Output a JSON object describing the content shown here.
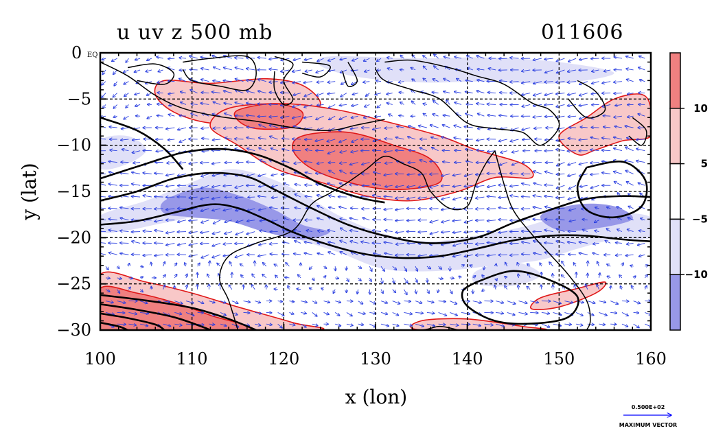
{
  "chart_data": {
    "type": "contour-map",
    "title_left": "u uv z 500 mb",
    "title_right": "011606",
    "xlabel": "x (lon)",
    "ylabel": "y (lat)",
    "xlim": [
      100,
      160
    ],
    "ylim": [
      -30,
      0
    ],
    "x_ticks": [
      "100",
      "110",
      "120",
      "130",
      "140",
      "150",
      "160"
    ],
    "y_ticks": [
      "0 EQ",
      "−5",
      "−10",
      "−15",
      "−20",
      "−25",
      "−30"
    ],
    "grid": true,
    "colorbar": {
      "placement": "right",
      "levels": [
        "10",
        "5",
        "−5",
        "−10"
      ],
      "colors": [
        "#f08080",
        "#f8c8c8",
        "#ffffff",
        "#e0e0f8",
        "#9898e8"
      ]
    },
    "vector_legend": {
      "magnitude": "0.500E+02",
      "label": "MAXIMUM VECTOR",
      "color": "#0000ff"
    },
    "red_regions": [
      {
        "level": 5,
        "points": [
          [
            107,
            -3
          ],
          [
            112,
            -3.3
          ],
          [
            118,
            -2.8
          ],
          [
            122,
            -3.5
          ],
          [
            124,
            -5.5
          ],
          [
            122,
            -6.8
          ],
          [
            117,
            -7.4
          ],
          [
            112,
            -7.6
          ],
          [
            108,
            -6.4
          ],
          [
            106,
            -4.5
          ]
        ]
      },
      {
        "level": 5,
        "points": [
          [
            114,
            -6
          ],
          [
            120,
            -5.5
          ],
          [
            126,
            -6.2
          ],
          [
            131,
            -7.4
          ],
          [
            137,
            -9
          ],
          [
            141,
            -10.5
          ],
          [
            146,
            -12
          ],
          [
            147,
            -13.5
          ],
          [
            143,
            -13.5
          ],
          [
            139,
            -15
          ],
          [
            134,
            -16
          ],
          [
            129,
            -15.5
          ],
          [
            124,
            -14
          ],
          [
            119,
            -12.5
          ],
          [
            115,
            -10
          ],
          [
            112,
            -8
          ]
        ]
      },
      {
        "level": 10,
        "points": [
          [
            115,
            -6.2
          ],
          [
            119,
            -5.5
          ],
          [
            122,
            -6.4
          ],
          [
            121,
            -8
          ],
          [
            117,
            -8.2
          ],
          [
            115,
            -7.3
          ]
        ]
      },
      {
        "level": 10,
        "points": [
          [
            122,
            -9
          ],
          [
            127,
            -8.6
          ],
          [
            132,
            -10
          ],
          [
            136,
            -11.5
          ],
          [
            137,
            -14
          ],
          [
            132,
            -14.8
          ],
          [
            127,
            -14
          ],
          [
            123,
            -12.5
          ],
          [
            121,
            -10.5
          ]
        ]
      },
      {
        "level": 5,
        "points": [
          [
            150,
            -9
          ],
          [
            153,
            -7
          ],
          [
            156,
            -5
          ],
          [
            159,
            -4.5
          ],
          [
            160,
            -6
          ],
          [
            160,
            -9
          ],
          [
            157,
            -9.5
          ],
          [
            154,
            -10.5
          ],
          [
            152,
            -11
          ]
        ]
      },
      {
        "level": 5,
        "points": [
          [
            100,
            -24
          ],
          [
            105,
            -24.8
          ],
          [
            110,
            -26
          ],
          [
            115,
            -27.5
          ],
          [
            121,
            -29.2
          ],
          [
            123,
            -30
          ],
          [
            100,
            -30
          ]
        ]
      },
      {
        "level": 10,
        "points": [
          [
            100,
            -25.5
          ],
          [
            104,
            -26
          ],
          [
            108,
            -27
          ],
          [
            112,
            -28.4
          ],
          [
            116,
            -30
          ],
          [
            100,
            -30
          ]
        ]
      },
      {
        "level": 5,
        "points": [
          [
            148,
            -26.5
          ],
          [
            152,
            -25.5
          ],
          [
            155,
            -24.8
          ],
          [
            154,
            -26
          ],
          [
            150,
            -27.5
          ],
          [
            147,
            -27.7
          ]
        ]
      },
      {
        "level": 5,
        "points": [
          [
            135,
            -29
          ],
          [
            140,
            -28.8
          ],
          [
            146,
            -29.6
          ],
          [
            148,
            -30
          ],
          [
            135,
            -30
          ]
        ]
      }
    ],
    "blue_regions": [
      {
        "level": -5,
        "points": [
          [
            100,
            -17.6
          ],
          [
            105,
            -16
          ],
          [
            110,
            -14
          ],
          [
            114,
            -12.6
          ],
          [
            118,
            -13.4
          ],
          [
            122,
            -15.2
          ],
          [
            126,
            -17.6
          ],
          [
            131,
            -19.6
          ],
          [
            136,
            -20.4
          ],
          [
            142,
            -19.6
          ],
          [
            147,
            -18.6
          ],
          [
            152,
            -17
          ],
          [
            156,
            -17.2
          ],
          [
            160,
            -17.8
          ],
          [
            160,
            -20
          ],
          [
            156,
            -20.2
          ],
          [
            152,
            -21.2
          ],
          [
            148,
            -22.4
          ],
          [
            143,
            -23
          ],
          [
            137,
            -23.6
          ],
          [
            131,
            -23.4
          ],
          [
            126,
            -21.6
          ],
          [
            121,
            -20
          ],
          [
            117,
            -18.6
          ],
          [
            112,
            -17.6
          ],
          [
            107,
            -18.4
          ],
          [
            103,
            -19.2
          ],
          [
            100,
            -19.4
          ]
        ]
      },
      {
        "level": -10,
        "points": [
          [
            107,
            -16
          ],
          [
            111,
            -14.6
          ],
          [
            115,
            -15.4
          ],
          [
            119,
            -17
          ],
          [
            122,
            -18.6
          ],
          [
            125,
            -19.4
          ],
          [
            122,
            -20.2
          ],
          [
            118,
            -19.4
          ],
          [
            114,
            -18.2
          ],
          [
            110,
            -17.8
          ],
          [
            107,
            -17.4
          ]
        ]
      },
      {
        "level": -10,
        "points": [
          [
            148,
            -17.6
          ],
          [
            152,
            -16.4
          ],
          [
            156,
            -16.6
          ],
          [
            158,
            -18
          ],
          [
            154,
            -19
          ],
          [
            150,
            -19.2
          ]
        ]
      },
      {
        "level": -5,
        "points": [
          [
            100,
            -9.5
          ],
          [
            103,
            -9
          ],
          [
            105,
            -10.5
          ],
          [
            103,
            -12
          ],
          [
            100,
            -12.5
          ]
        ]
      },
      {
        "level": -5,
        "points": [
          [
            125,
            -0.4
          ],
          [
            135,
            -0.6
          ],
          [
            142,
            -0.5
          ],
          [
            150,
            -1
          ],
          [
            156,
            -2.2
          ],
          [
            150,
            -3.3
          ],
          [
            142,
            -3.1
          ],
          [
            135,
            -3.2
          ],
          [
            128,
            -2.6
          ],
          [
            124,
            -1.4
          ]
        ]
      },
      {
        "level": -5,
        "points": [
          [
            141,
            -23.6
          ],
          [
            145,
            -22.6
          ],
          [
            148,
            -24
          ],
          [
            145,
            -25.2
          ],
          [
            141,
            -25
          ]
        ]
      }
    ],
    "z_contours": [
      [
        [
          100,
          -16
        ],
        [
          104,
          -15
        ],
        [
          108,
          -13.6
        ],
        [
          112,
          -13
        ],
        [
          116,
          -13.4
        ],
        [
          119,
          -14.8
        ],
        [
          123,
          -16.8
        ],
        [
          127,
          -18.6
        ],
        [
          131,
          -19.8
        ],
        [
          136,
          -20.6
        ],
        [
          141,
          -20
        ],
        [
          145,
          -18.4
        ],
        [
          149,
          -17
        ],
        [
          153,
          -15.8
        ],
        [
          157,
          -15.5
        ],
        [
          160,
          -15.6
        ]
      ],
      [
        [
          100,
          -18.6
        ],
        [
          104,
          -18.2
        ],
        [
          108,
          -17.3
        ],
        [
          112,
          -16.4
        ],
        [
          115,
          -16.8
        ],
        [
          118,
          -18
        ],
        [
          121,
          -19.4
        ],
        [
          125,
          -20.8
        ],
        [
          129,
          -21.8
        ],
        [
          133,
          -22.2
        ],
        [
          137,
          -22
        ],
        [
          141,
          -21.2
        ],
        [
          145,
          -20.3
        ],
        [
          149,
          -19.8
        ],
        [
          153,
          -19.8
        ],
        [
          157,
          -20.2
        ],
        [
          160,
          -20.4
        ]
      ],
      [
        [
          100,
          -13.6
        ],
        [
          105,
          -12
        ],
        [
          109,
          -10.8
        ],
        [
          113,
          -10.4
        ],
        [
          117,
          -11
        ],
        [
          121,
          -12.6
        ],
        [
          124,
          -14.2
        ],
        [
          128,
          -15.6
        ],
        [
          131,
          -16.2
        ]
      ],
      [
        [
          100,
          -7
        ],
        [
          104,
          -8.4
        ],
        [
          107,
          -10.4
        ],
        [
          109,
          -12.6
        ]
      ],
      [
        [
          141,
          -24.8
        ],
        [
          145,
          -23.6
        ],
        [
          149,
          -24.6
        ],
        [
          152,
          -26.4
        ],
        [
          151,
          -28.6
        ],
        [
          147,
          -29.3
        ],
        [
          143,
          -29
        ],
        [
          140,
          -27.4
        ],
        [
          139.5,
          -25.8
        ],
        [
          141,
          -24.8
        ]
      ],
      [
        [
          153,
          -12.4
        ],
        [
          157,
          -11.8
        ],
        [
          159.4,
          -13.8
        ],
        [
          159,
          -16.6
        ],
        [
          156,
          -17.8
        ],
        [
          153,
          -17
        ],
        [
          152,
          -14.6
        ],
        [
          153,
          -12.4
        ]
      ],
      [
        [
          100,
          -26.2
        ],
        [
          105,
          -26.8
        ],
        [
          110,
          -27.6
        ],
        [
          114,
          -28.8
        ],
        [
          117,
          -30
        ]
      ],
      [
        [
          100,
          -27.2
        ],
        [
          104,
          -27.8
        ],
        [
          108,
          -28.6
        ],
        [
          111,
          -29.6
        ],
        [
          112,
          -30
        ]
      ],
      [
        [
          100,
          -28.2
        ],
        [
          103,
          -28.7
        ],
        [
          106,
          -29.4
        ],
        [
          107,
          -30
        ]
      ],
      [
        [
          100,
          -29.2
        ],
        [
          102,
          -29.6
        ],
        [
          103,
          -30
        ]
      ]
    ],
    "coastlines": [
      [
        [
          100,
          -1
        ],
        [
          103,
          -2.5
        ],
        [
          106,
          -4.6
        ],
        [
          109,
          -6
        ],
        [
          113,
          -6.9
        ],
        [
          117,
          -7.4
        ],
        [
          121,
          -8.1
        ],
        [
          125,
          -8.4
        ],
        [
          128,
          -7.8
        ],
        [
          131,
          -7.2
        ]
      ],
      [
        [
          103,
          -1.6
        ],
        [
          106,
          -1.2
        ],
        [
          108,
          -2.2
        ],
        [
          107,
          -3.4
        ],
        [
          104,
          -3
        ]
      ],
      [
        [
          109,
          -1
        ],
        [
          112,
          -0.6
        ],
        [
          116,
          -0.4
        ],
        [
          117,
          -2.2
        ],
        [
          116,
          -4
        ],
        [
          113,
          -3.6
        ],
        [
          110,
          -3
        ],
        [
          109,
          -1.8
        ]
      ],
      [
        [
          119,
          -0.4
        ],
        [
          121,
          -1.2
        ],
        [
          120,
          -3
        ],
        [
          121,
          -5
        ],
        [
          120,
          -5.6
        ],
        [
          119,
          -4
        ],
        [
          119,
          -2
        ]
      ],
      [
        [
          122,
          -1
        ],
        [
          125,
          -1.4
        ],
        [
          124,
          -2.6
        ],
        [
          122,
          -2.2
        ]
      ],
      [
        [
          127,
          -1
        ],
        [
          128,
          -3
        ],
        [
          127,
          -3.6
        ],
        [
          126.4,
          -2
        ]
      ],
      [
        [
          131,
          -1
        ],
        [
          134,
          -0.8
        ],
        [
          138,
          -1.6
        ],
        [
          141,
          -2.5
        ],
        [
          144,
          -3.4
        ],
        [
          147,
          -5.4
        ],
        [
          149,
          -6.2
        ],
        [
          150,
          -8
        ],
        [
          148,
          -10
        ],
        [
          146,
          -8.6
        ],
        [
          143,
          -8.2
        ],
        [
          140,
          -7.6
        ],
        [
          137,
          -5
        ],
        [
          134,
          -4
        ],
        [
          131,
          -3
        ],
        [
          130,
          -1.8
        ]
      ],
      [
        [
          143,
          -10.6
        ],
        [
          142,
          -12
        ],
        [
          141,
          -14
        ],
        [
          140,
          -16.6
        ],
        [
          138,
          -16.8
        ],
        [
          136,
          -15
        ],
        [
          135,
          -13
        ],
        [
          133,
          -12
        ],
        [
          131,
          -11.2
        ],
        [
          129,
          -12.6
        ],
        [
          127,
          -14
        ],
        [
          125,
          -15.2
        ],
        [
          123,
          -16.4
        ],
        [
          121,
          -19.2
        ],
        [
          117,
          -20.6
        ],
        [
          114,
          -22
        ],
        [
          113,
          -24.4
        ],
        [
          114,
          -26.8
        ],
        [
          115,
          -30
        ]
      ],
      [
        [
          143,
          -10.6
        ],
        [
          144,
          -14.2
        ],
        [
          145,
          -17
        ],
        [
          147,
          -19.6
        ],
        [
          149,
          -21.8
        ],
        [
          151,
          -24
        ],
        [
          153,
          -26.8
        ],
        [
          153.4,
          -29
        ],
        [
          153,
          -30
        ]
      ],
      [
        [
          129,
          -30
        ],
        [
          131,
          -30
        ],
        [
          135,
          -30
        ],
        [
          137,
          -29.6
        ],
        [
          139,
          -30
        ]
      ],
      [
        [
          152,
          -3
        ],
        [
          154,
          -4.2
        ],
        [
          155,
          -6.2
        ],
        [
          153,
          -7
        ],
        [
          151,
          -5
        ]
      ],
      [
        [
          158,
          -7
        ],
        [
          159.5,
          -8.4
        ],
        [
          159,
          -10
        ],
        [
          157.6,
          -9
        ]
      ]
    ]
  }
}
